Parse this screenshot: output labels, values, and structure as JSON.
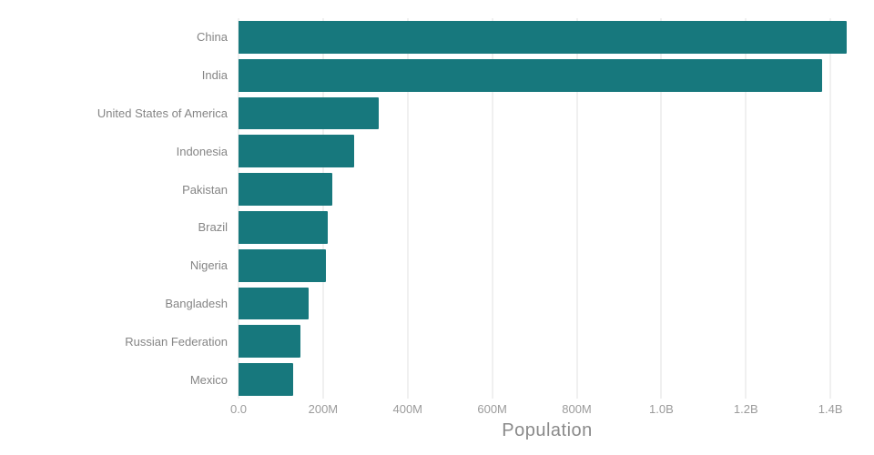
{
  "chart_data": {
    "type": "bar",
    "orientation": "horizontal",
    "title": "",
    "xlabel": "Population",
    "ylabel": "",
    "categories": [
      "China",
      "India",
      "United States of America",
      "Indonesia",
      "Pakistan",
      "Brazil",
      "Nigeria",
      "Bangladesh",
      "Russian Federation",
      "Mexico"
    ],
    "values_millions": [
      1439,
      1380,
      331,
      273,
      221,
      212,
      206,
      165,
      146,
      129
    ],
    "x_axis_max_millions": 1460,
    "x_ticks": [
      {
        "value": 0,
        "label": "0.0"
      },
      {
        "value": 200,
        "label": "200M"
      },
      {
        "value": 400,
        "label": "400M"
      },
      {
        "value": 600,
        "label": "600M"
      },
      {
        "value": 800,
        "label": "800M"
      },
      {
        "value": 1000,
        "label": "1.0B"
      },
      {
        "value": 1200,
        "label": "1.2B"
      },
      {
        "value": 1400,
        "label": "1.4B"
      }
    ],
    "grid": "vertical",
    "legend": "none",
    "colors": {
      "bar": "#17787d",
      "gridline": "#e2e2e2",
      "tick_label": "#9b9b9b",
      "category_label": "#858585",
      "axis_title": "#8a8a8a",
      "background": "#ffffff"
    }
  }
}
